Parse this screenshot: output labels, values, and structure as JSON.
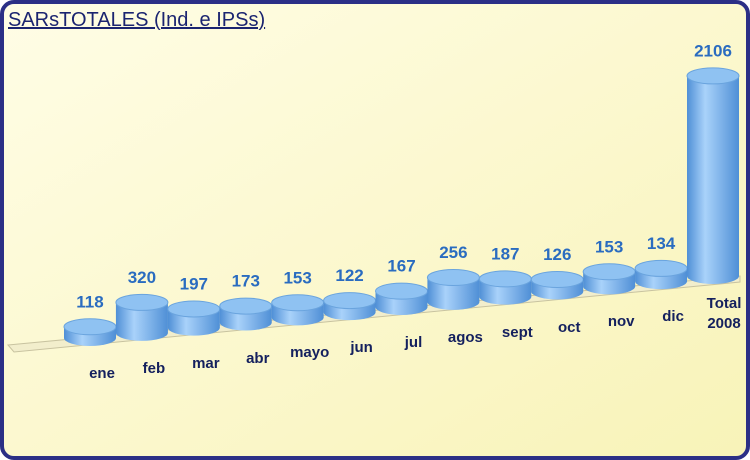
{
  "chart_data": {
    "type": "bar",
    "title": "SARsTOTALES (Ind. e IPSs)",
    "categories": [
      "ene",
      "feb",
      "mar",
      "abr",
      "mayo",
      "jun",
      "jul",
      "agos",
      "sept",
      "oct",
      "nov",
      "dic",
      "Total 2008"
    ],
    "values": [
      118,
      320,
      197,
      173,
      153,
      122,
      167,
      256,
      187,
      126,
      153,
      134,
      2106
    ],
    "color": "#7db4ea"
  }
}
